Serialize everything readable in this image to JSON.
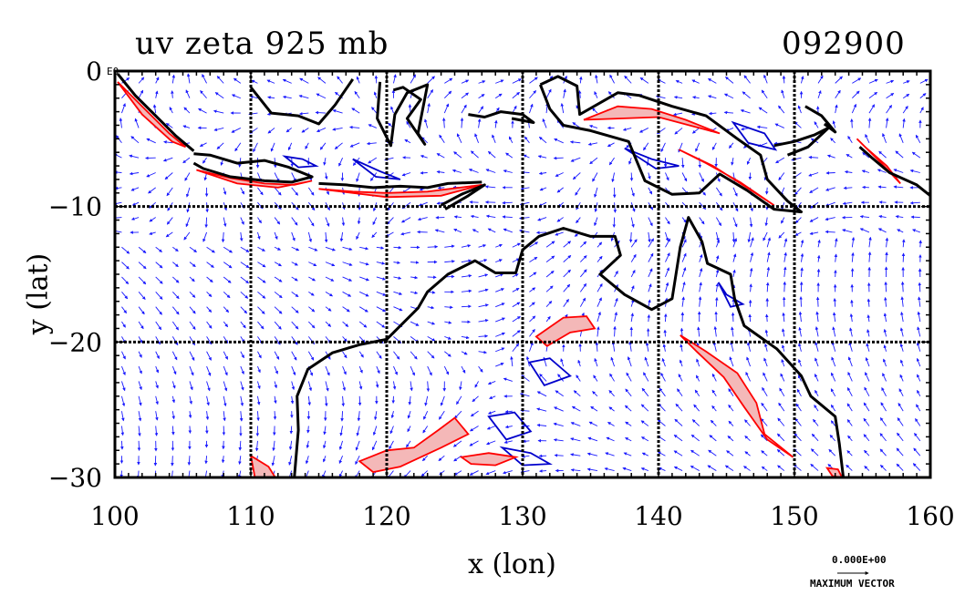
{
  "title": {
    "field": "uv zeta 925 mb",
    "time": "092900"
  },
  "axes": {
    "xlabel": "x (lon)",
    "ylabel": "y (lat)",
    "x_ticks": [
      "100",
      "110",
      "120",
      "130",
      "140",
      "150",
      "160"
    ],
    "y_ticks": [
      "0",
      "−10",
      "−20",
      "−30"
    ],
    "corner_exponent": "E0"
  },
  "legend": {
    "value": "0.000E+00",
    "label": "MAXIMUM VECTOR"
  },
  "colors": {
    "vectors": "#1a1aff",
    "positive_contour": "#ff0000",
    "positive_fill": "#f4b8b8",
    "negative_contour": "#0000cc",
    "coastline": "#000000"
  },
  "map": {
    "lon_range": [
      100,
      160
    ],
    "lat_range": [
      -30,
      0
    ],
    "coastlines": [
      {
        "name": "sumatra",
        "points": [
          [
            100.2,
            -0.2
          ],
          [
            101.5,
            -1.8
          ],
          [
            103,
            -3.3
          ],
          [
            104.5,
            -4.8
          ],
          [
            105.8,
            -5.9
          ]
        ]
      },
      {
        "name": "java",
        "points": [
          [
            105.8,
            -6.1
          ],
          [
            107,
            -6.2
          ],
          [
            109,
            -6.8
          ],
          [
            111,
            -6.6
          ],
          [
            112.8,
            -7.1
          ],
          [
            114.5,
            -7.8
          ],
          [
            113,
            -8.2
          ],
          [
            111,
            -8.1
          ],
          [
            108.5,
            -7.8
          ],
          [
            106.5,
            -7.2
          ],
          [
            105.8,
            -6.8
          ]
        ]
      },
      {
        "name": "lesser_sundas",
        "points": [
          [
            115,
            -8.3
          ],
          [
            117,
            -8.4
          ],
          [
            119,
            -8.6
          ],
          [
            121,
            -8.5
          ],
          [
            123,
            -8.6
          ],
          [
            124.5,
            -8.3
          ],
          [
            127,
            -8.2
          ]
        ]
      },
      {
        "name": "timor",
        "points": [
          [
            124,
            -9.9
          ],
          [
            125.5,
            -9.1
          ],
          [
            127.2,
            -8.4
          ],
          [
            126,
            -9.2
          ],
          [
            124.3,
            -10.2
          ]
        ]
      },
      {
        "name": "borneo_south",
        "points": [
          [
            110,
            -1.2
          ],
          [
            111.5,
            -3.1
          ],
          [
            113.5,
            -3.3
          ],
          [
            115,
            -3.9
          ],
          [
            116.2,
            -2.5
          ],
          [
            117.5,
            -0.6
          ]
        ]
      },
      {
        "name": "sulawesi",
        "points": [
          [
            119.5,
            -0.8
          ],
          [
            119.3,
            -3.5
          ],
          [
            120.3,
            -5.5
          ],
          [
            120.6,
            -3.2
          ],
          [
            121.5,
            -1.6
          ],
          [
            123,
            -1
          ],
          [
            122.3,
            -4.6
          ],
          [
            122.8,
            -5.4
          ],
          [
            121.5,
            -3.5
          ],
          [
            122.5,
            -2.1
          ],
          [
            121.2,
            -1.2
          ],
          [
            120.5,
            -1.4
          ]
        ]
      },
      {
        "name": "buru_seram",
        "points": [
          [
            126,
            -3.2
          ],
          [
            127.2,
            -3.4
          ],
          [
            128.4,
            -3.0
          ],
          [
            130,
            -3.2
          ],
          [
            130.8,
            -3.8
          ],
          [
            129.2,
            -3.5
          ]
        ]
      },
      {
        "name": "new_guinea",
        "points": [
          [
            131.3,
            -1.0
          ],
          [
            132.6,
            -0.4
          ],
          [
            134,
            -1.1
          ],
          [
            134.2,
            -3.2
          ],
          [
            137,
            -1.6
          ],
          [
            138.6,
            -1.8
          ],
          [
            141,
            -2.6
          ],
          [
            143.5,
            -3.3
          ],
          [
            145.8,
            -5.0
          ],
          [
            147.5,
            -6.2
          ],
          [
            148,
            -8.0
          ],
          [
            149.5,
            -9.6
          ],
          [
            150.5,
            -10.4
          ],
          [
            148.5,
            -10.2
          ],
          [
            146.5,
            -8.8
          ],
          [
            144.5,
            -7.6
          ],
          [
            143,
            -9.0
          ],
          [
            141,
            -9.1
          ],
          [
            139,
            -8.1
          ],
          [
            137.8,
            -5.2
          ],
          [
            135,
            -4.4
          ],
          [
            133,
            -4.0
          ],
          [
            132,
            -2.8
          ],
          [
            131.3,
            -1.0
          ]
        ]
      },
      {
        "name": "australia",
        "points": [
          [
            113.2,
            -30
          ],
          [
            113.5,
            -26.5
          ],
          [
            113.4,
            -24
          ],
          [
            114.2,
            -22
          ],
          [
            116,
            -20.8
          ],
          [
            118,
            -20.2
          ],
          [
            120,
            -19.8
          ],
          [
            122.3,
            -17.5
          ],
          [
            123,
            -16.3
          ],
          [
            124.5,
            -15
          ],
          [
            126.5,
            -14
          ],
          [
            128,
            -14.9
          ],
          [
            129.5,
            -14.9
          ],
          [
            130,
            -13.2
          ],
          [
            131.2,
            -12.2
          ],
          [
            133,
            -11.6
          ],
          [
            135,
            -12.2
          ],
          [
            136.8,
            -12.2
          ],
          [
            137.2,
            -13.6
          ],
          [
            135.7,
            -15
          ],
          [
            137.5,
            -16.5
          ],
          [
            139.5,
            -17.6
          ],
          [
            141,
            -16.8
          ],
          [
            141.6,
            -13
          ],
          [
            142.2,
            -10.8
          ],
          [
            143.2,
            -12.6
          ],
          [
            143.6,
            -14.2
          ],
          [
            145.3,
            -15
          ],
          [
            145.6,
            -16.8
          ],
          [
            146.3,
            -18.8
          ],
          [
            148.7,
            -20.5
          ],
          [
            150.5,
            -22.5
          ],
          [
            151.2,
            -24
          ],
          [
            153,
            -25.5
          ],
          [
            153.3,
            -27.5
          ],
          [
            153.6,
            -30
          ]
        ]
      },
      {
        "name": "new_britain",
        "points": [
          [
            148.5,
            -5.5
          ],
          [
            150,
            -5.2
          ],
          [
            151.5,
            -4.7
          ],
          [
            152.5,
            -4.2
          ],
          [
            151,
            -5.6
          ],
          [
            149.5,
            -6.2
          ]
        ]
      },
      {
        "name": "new_ireland",
        "points": [
          [
            150.8,
            -2.6
          ],
          [
            152,
            -3.3
          ],
          [
            153,
            -4.5
          ],
          [
            152.2,
            -3.9
          ]
        ]
      },
      {
        "name": "solomons",
        "points": [
          [
            154.8,
            -5.6
          ],
          [
            155.7,
            -6.4
          ],
          [
            157,
            -7.5
          ],
          [
            159,
            -8.4
          ],
          [
            160,
            -9.2
          ]
        ]
      }
    ],
    "positive_regions": [
      {
        "name": "sumatra_w",
        "points": [
          [
            100.2,
            -0.8
          ],
          [
            102,
            -2.6
          ],
          [
            104,
            -4.6
          ],
          [
            105.2,
            -5.6
          ],
          [
            104.2,
            -5.2
          ],
          [
            102,
            -3.2
          ]
        ]
      },
      {
        "name": "java_s",
        "points": [
          [
            106,
            -7.3
          ],
          [
            108.5,
            -7.9
          ],
          [
            111,
            -8.3
          ],
          [
            113.2,
            -8.4
          ],
          [
            114.5,
            -8.1
          ],
          [
            112,
            -8.6
          ],
          [
            109,
            -8.3
          ]
        ]
      },
      {
        "name": "sundas_s",
        "points": [
          [
            115,
            -8.7
          ],
          [
            117.5,
            -8.9
          ],
          [
            120,
            -9
          ],
          [
            123,
            -8.9
          ],
          [
            127,
            -8.4
          ],
          [
            124,
            -9.2
          ],
          [
            120,
            -9.3
          ]
        ]
      },
      {
        "name": "newguinea_n",
        "points": [
          [
            134.5,
            -3.6
          ],
          [
            137,
            -2.6
          ],
          [
            139.5,
            -2.8
          ],
          [
            142,
            -3.6
          ],
          [
            144.5,
            -4.6
          ],
          [
            143,
            -4.2
          ],
          [
            140,
            -3.4
          ]
        ]
      },
      {
        "name": "newguinea_s",
        "points": [
          [
            141.5,
            -5.8
          ],
          [
            144,
            -7.0
          ],
          [
            146.5,
            -8.6
          ],
          [
            148.5,
            -9.9
          ],
          [
            146,
            -8.2
          ],
          [
            143.5,
            -6.8
          ]
        ]
      },
      {
        "name": "solomons_s",
        "points": [
          [
            154.6,
            -5.0
          ],
          [
            156.2,
            -6.6
          ],
          [
            157.8,
            -8.3
          ],
          [
            156.8,
            -7.0
          ],
          [
            155.2,
            -5.6
          ]
        ]
      },
      {
        "name": "qld",
        "points": [
          [
            141.6,
            -19.5
          ],
          [
            143.5,
            -20.7
          ],
          [
            145.8,
            -22.3
          ],
          [
            147.2,
            -24.5
          ],
          [
            147.8,
            -26.8
          ],
          [
            149.9,
            -28.5
          ],
          [
            148,
            -27.2
          ],
          [
            146.3,
            -24.8
          ],
          [
            144.8,
            -22.6
          ],
          [
            142.8,
            -20.7
          ]
        ]
      },
      {
        "name": "gulf",
        "points": [
          [
            131,
            -19.6
          ],
          [
            133,
            -18.2
          ],
          [
            134.7,
            -18.1
          ],
          [
            135.3,
            -19.0
          ],
          [
            133.5,
            -19.3
          ],
          [
            131.8,
            -20.3
          ]
        ]
      },
      {
        "name": "wa_interior",
        "points": [
          [
            118,
            -28.8
          ],
          [
            120,
            -28
          ],
          [
            122,
            -27.8
          ],
          [
            123.8,
            -26.5
          ],
          [
            125,
            -25.6
          ],
          [
            126,
            -26.8
          ],
          [
            124,
            -27.8
          ],
          [
            121,
            -29.2
          ],
          [
            119,
            -29.6
          ]
        ]
      },
      {
        "name": "sa_blob",
        "points": [
          [
            125.5,
            -28.5
          ],
          [
            127.5,
            -28.2
          ],
          [
            129.5,
            -28.5
          ],
          [
            128,
            -29.1
          ],
          [
            126.2,
            -29
          ]
        ]
      },
      {
        "name": "nsw_coast",
        "points": [
          [
            152.4,
            -29.3
          ],
          [
            153.2,
            -29.4
          ],
          [
            153.5,
            -30
          ],
          [
            152.8,
            -29.9
          ]
        ]
      },
      {
        "name": "sw_wa",
        "points": [
          [
            110,
            -28.4
          ],
          [
            111.3,
            -29.2
          ],
          [
            111.8,
            -30
          ],
          [
            110.3,
            -30
          ]
        ]
      }
    ],
    "negative_regions": [
      {
        "name": "java_sea",
        "points": [
          [
            112.5,
            -6.3
          ],
          [
            113.8,
            -6.5
          ],
          [
            114.8,
            -7.0
          ],
          [
            113.5,
            -7.1
          ]
        ]
      },
      {
        "name": "flores_sea",
        "points": [
          [
            117.5,
            -6.5
          ],
          [
            119.5,
            -7.4
          ],
          [
            121,
            -8.0
          ],
          [
            119.2,
            -7.8
          ]
        ]
      },
      {
        "name": "arafura",
        "points": [
          [
            137.5,
            -5.7
          ],
          [
            139.5,
            -6.5
          ],
          [
            141.5,
            -7.0
          ],
          [
            139.8,
            -7.2
          ]
        ]
      },
      {
        "name": "bismarck",
        "points": [
          [
            145.5,
            -3.8
          ],
          [
            147.8,
            -4.6
          ],
          [
            148.6,
            -5.8
          ],
          [
            146.6,
            -5.3
          ]
        ]
      },
      {
        "name": "kimberley_e",
        "points": [
          [
            130.5,
            -21.5
          ],
          [
            132,
            -21.2
          ],
          [
            133.5,
            -22.5
          ],
          [
            131.6,
            -23.2
          ]
        ]
      },
      {
        "name": "central_aus",
        "points": [
          [
            127.5,
            -25.5
          ],
          [
            129.4,
            -25.2
          ],
          [
            130.6,
            -26.6
          ],
          [
            128.8,
            -27.2
          ]
        ]
      },
      {
        "name": "sa_low",
        "points": [
          [
            128.5,
            -27.8
          ],
          [
            130.6,
            -28.2
          ],
          [
            132,
            -29
          ],
          [
            130,
            -29.1
          ]
        ]
      },
      {
        "name": "coral_sea",
        "points": [
          [
            144.4,
            -15.6
          ],
          [
            145,
            -16.5
          ],
          [
            146.2,
            -17.2
          ],
          [
            145.3,
            -17.4
          ]
        ]
      }
    ]
  }
}
